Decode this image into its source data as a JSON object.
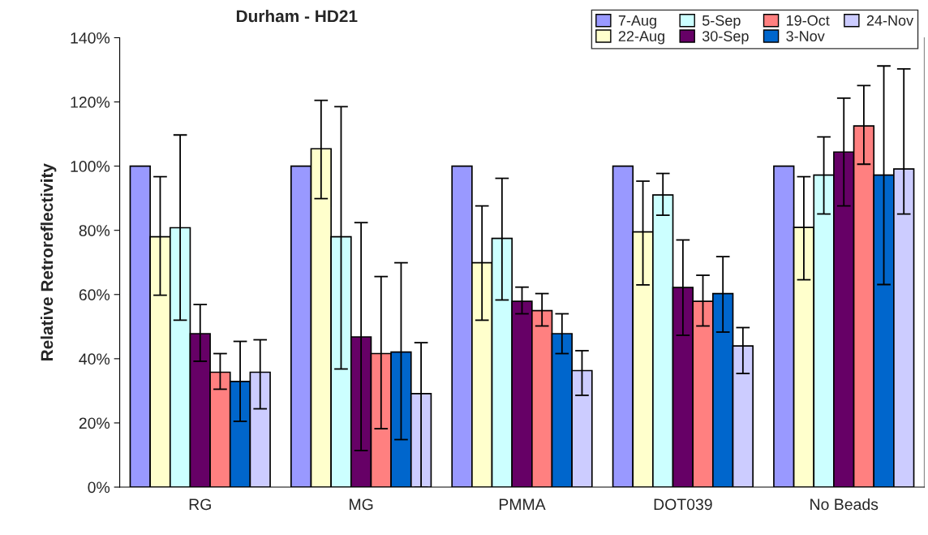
{
  "chart_data": {
    "type": "bar",
    "title": "Durham - HD21",
    "ylabel": "Relative Retroreflectivity",
    "categories": [
      "RG",
      "MG",
      "PMMA",
      "DOT039",
      "No Beads"
    ],
    "ylim": [
      0,
      140
    ],
    "yticks": [
      {
        "value": 0,
        "label": "0%"
      },
      {
        "value": 20,
        "label": "20%"
      },
      {
        "value": 40,
        "label": "40%"
      },
      {
        "value": 60,
        "label": "60%"
      },
      {
        "value": 80,
        "label": "80%"
      },
      {
        "value": 100,
        "label": "100%"
      },
      {
        "value": 120,
        "label": "120%"
      },
      {
        "value": 140,
        "label": "140%"
      }
    ],
    "grid": false,
    "legend": "top right",
    "series": [
      {
        "name": "7-Aug",
        "color": "#9999ff",
        "values": [
          100,
          100,
          100,
          100,
          100
        ]
      },
      {
        "name": "22-Aug",
        "color": "#ffffcc",
        "values": [
          78,
          105.4,
          69.9,
          79.5,
          80.9
        ],
        "errors": [
          [
            59.8,
            96.7
          ],
          [
            89.9,
            120.5
          ],
          [
            52,
            87.6
          ],
          [
            63,
            95.3
          ],
          [
            64.6,
            96.7
          ]
        ]
      },
      {
        "name": "5-Sep",
        "color": "#ccffff",
        "values": [
          80.8,
          78,
          77.5,
          91,
          97.2
        ],
        "errors": [
          [
            52,
            109.7
          ],
          [
            36.8,
            118.5
          ],
          [
            58.3,
            96.2
          ],
          [
            84.7,
            97.7
          ],
          [
            85.1,
            109.1
          ]
        ]
      },
      {
        "name": "30-Sep",
        "color": "#660066",
        "values": [
          47.8,
          46.8,
          57.9,
          62.2,
          104.4
        ],
        "errors": [
          [
            39.2,
            56.9
          ],
          [
            11.4,
            82.4
          ],
          [
            54,
            62.3
          ],
          [
            47.3,
            77
          ],
          [
            87.6,
            121.2
          ]
        ]
      },
      {
        "name": "19-Oct",
        "color": "#ff8080",
        "values": [
          35.8,
          41.6,
          55,
          57.9,
          112.5
        ],
        "errors": [
          [
            30.5,
            41.6
          ],
          [
            18.2,
            65.6
          ],
          [
            50.2,
            60.3
          ],
          [
            50.2,
            66
          ],
          [
            100.6,
            125.1
          ]
        ]
      },
      {
        "name": "3-Nov",
        "color": "#0066cc",
        "values": [
          32.9,
          42.1,
          47.8,
          60.3,
          97.2
        ],
        "errors": [
          [
            20.5,
            45.4
          ],
          [
            14.8,
            69.9
          ],
          [
            41.6,
            54
          ],
          [
            48.3,
            71.8
          ],
          [
            63.1,
            131.2
          ]
        ]
      },
      {
        "name": "24-Nov",
        "color": "#ccccff",
        "values": [
          35.8,
          29.1,
          36.3,
          44,
          99.1
        ],
        "errors": [
          [
            24.4,
            45.9
          ],
          [
            0,
            45
          ],
          [
            28.6,
            42.5
          ],
          [
            35.4,
            49.7
          ],
          [
            85.1,
            130.3
          ]
        ]
      }
    ]
  }
}
